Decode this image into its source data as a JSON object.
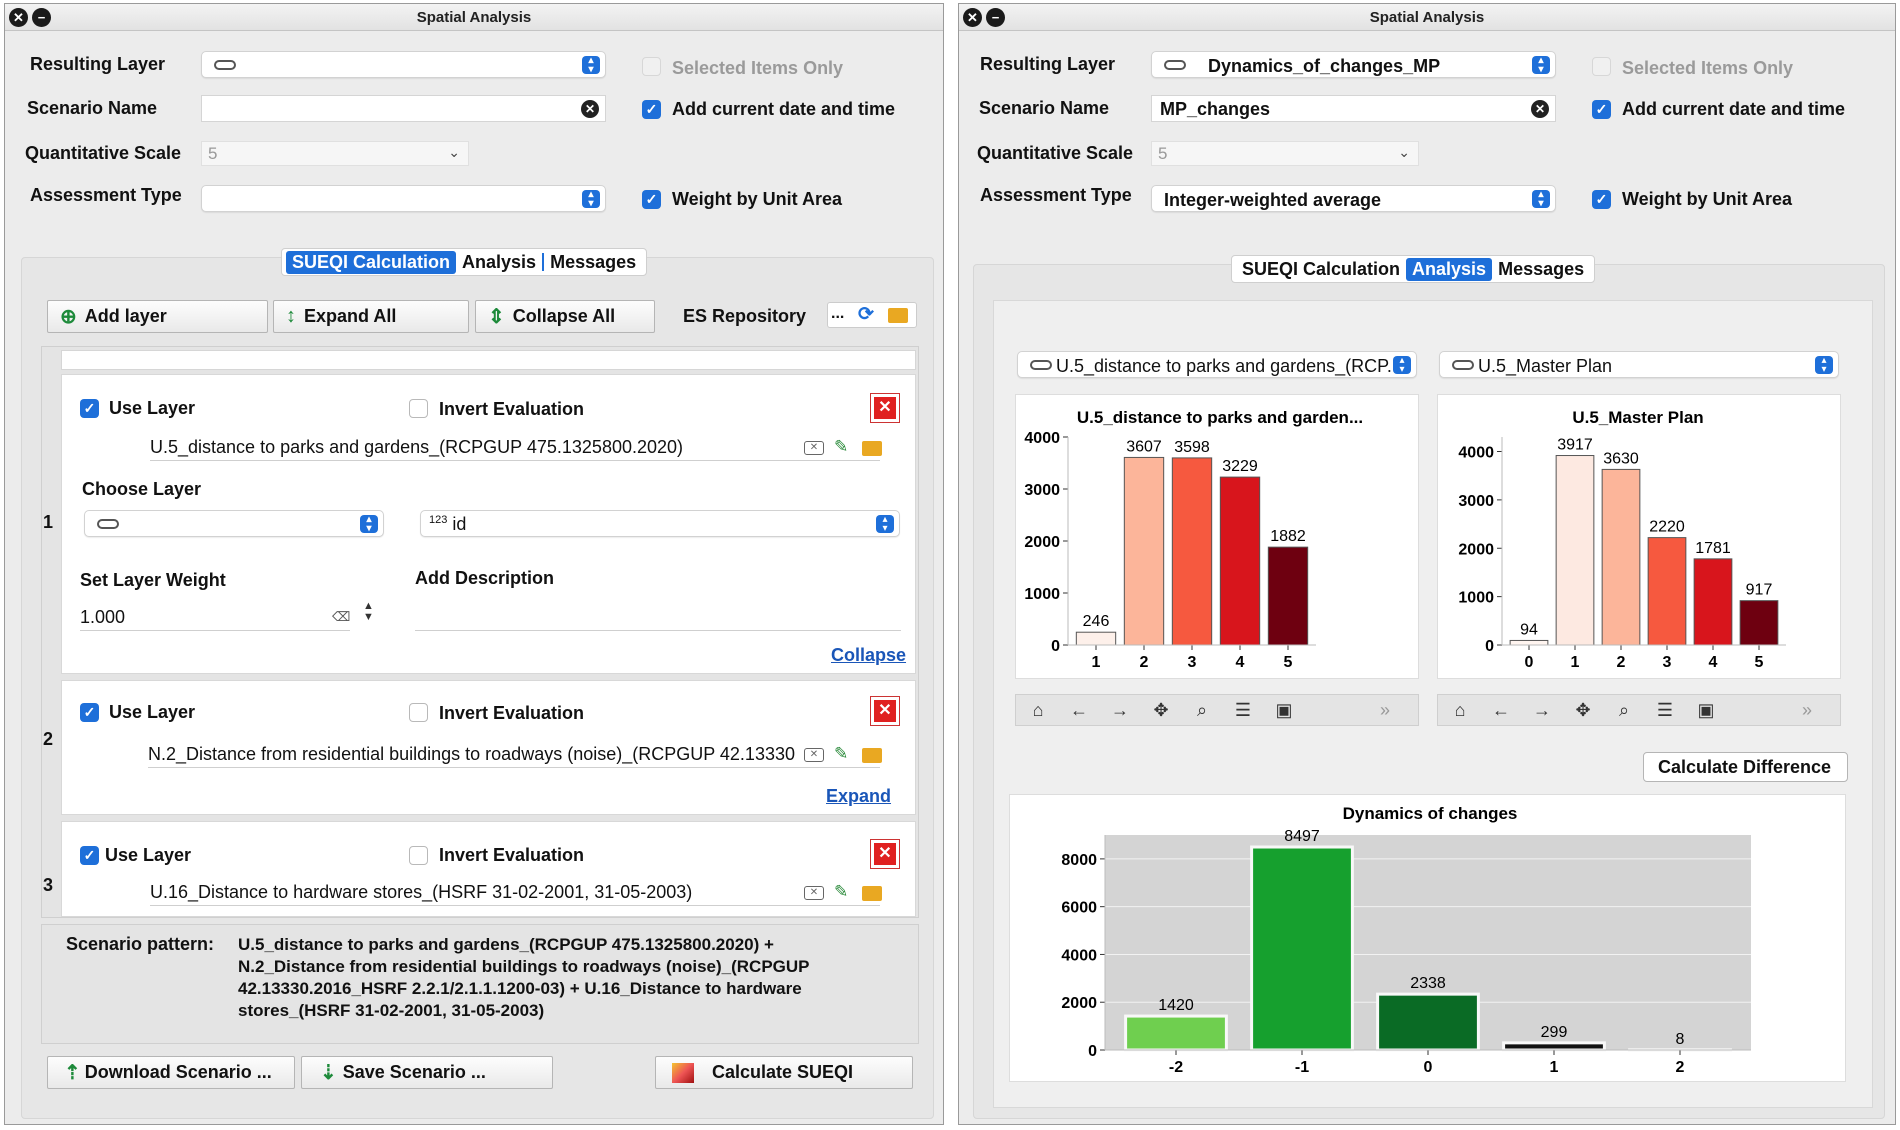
{
  "left": {
    "title": "Spatial Analysis",
    "resulting_layer_label": "Resulting Layer",
    "scenario_name_label": "Scenario Name",
    "quant_scale_label": "Quantitative Scale",
    "quant_scale_value": "5",
    "assessment_type_label": "Assessment Type",
    "selected_only": "Selected Items Only",
    "add_date": "Add current date and time",
    "weight_unit": "Weight by Unit Area",
    "tabs": [
      "SUEQI Calculation",
      "Analysis",
      "Messages"
    ],
    "add_layer": "Add layer",
    "expand_all": "Expand All",
    "collapse_all": "Collapse All",
    "es_repository": "ES Repository",
    "ellipsis": "...",
    "layers": [
      {
        "num": "1",
        "use": "Use Layer",
        "invert": "Invert Evaluation",
        "path": "U.5_distance to parks and gardens_(RCPGUP 475.1325800.2020)",
        "toggle": "Collapse"
      },
      {
        "num": "2",
        "use": "Use Layer",
        "invert": "Invert Evaluation",
        "path": "N.2_Distance from residential buildings to roadways (noise)_(RCPGUP 42.13330",
        "toggle": "Expand"
      },
      {
        "num": "3",
        "use": "Use Layer",
        "invert": "Invert Evaluation",
        "path": "U.16_Distance to hardware stores_(HSRF 31-02-2001, 31-05-2003)"
      }
    ],
    "choose_layer": "Choose Layer",
    "id_field_prefix": "123",
    "id_field": "id",
    "set_weight": "Set Layer Weight",
    "weight_value": "1.000",
    "add_description": "Add Description",
    "scenario_pattern_label": "Scenario pattern:",
    "scenario_pattern_lines": [
      "U.5_distance to parks and gardens_(RCPGUP 475.1325800.2020) +",
      "N.2_Distance from residential buildings to roadways (noise)_(RCPGUP",
      "42.13330.2016_HSRF 2.2.1/2.1.1.1200-03) + U.16_Distance to hardware",
      "stores_(HSRF 31-02-2001, 31-05-2003)"
    ],
    "download": "Download Scenario ...",
    "save": "Save Scenario ...",
    "calculate": "Calculate SUEQI"
  },
  "right": {
    "title": "Spatial Analysis",
    "resulting_layer_label": "Resulting Layer",
    "resulting_layer_value": "Dynamics_of_changes_MP",
    "scenario_name_label": "Scenario Name",
    "scenario_name_value": "MP_changes",
    "quant_scale_label": "Quantitative Scale",
    "quant_scale_value": "5",
    "assessment_type_label": "Assessment Type",
    "assessment_type_value": "Integer-weighted average",
    "selected_only": "Selected Items Only",
    "add_date": "Add current date and time",
    "weight_unit": "Weight by Unit Area",
    "tabs": [
      "SUEQI Calculation",
      "Analysis",
      "Messages"
    ],
    "combo_a": "U.5_distance to parks and gardens_(RCP...",
    "combo_b": "U.5_Master Plan",
    "calc_difference": "Calculate Difference",
    "more": "»"
  },
  "chart_data": [
    {
      "type": "bar",
      "title": "U.5_distance to parks and garden...",
      "categories": [
        "1",
        "2",
        "3",
        "4",
        "5"
      ],
      "values": [
        246,
        3607,
        3598,
        3229,
        1882
      ],
      "colors": [
        "#fdf0ea",
        "#fcb59a",
        "#f6593f",
        "#d8151c",
        "#6e0010"
      ],
      "yticks": [
        0,
        1000,
        2000,
        3000,
        4000
      ],
      "ylim": [
        0,
        4000
      ]
    },
    {
      "type": "bar",
      "title": "U.5_Master Plan",
      "categories": [
        "0",
        "1",
        "2",
        "3",
        "4",
        "5"
      ],
      "values": [
        94,
        3917,
        3630,
        2220,
        1781,
        917
      ],
      "colors": [
        "#fff5f0",
        "#fde9e1",
        "#fcb59a",
        "#f6593f",
        "#d8151c",
        "#6e0010"
      ],
      "yticks": [
        0,
        1000,
        2000,
        3000,
        4000
      ],
      "ylim": [
        0,
        4300
      ]
    },
    {
      "type": "bar",
      "title": "Dynamics of changes",
      "categories": [
        "-2",
        "-1",
        "0",
        "1",
        "2"
      ],
      "values": [
        1420,
        8497,
        2338,
        299,
        8
      ],
      "colors": [
        "#6fcf4f",
        "#16a02e",
        "#0a6b25",
        "#111111",
        "#111111"
      ],
      "yticks": [
        0,
        2000,
        4000,
        6000,
        8000
      ],
      "ylim": [
        0,
        9000
      ]
    }
  ]
}
